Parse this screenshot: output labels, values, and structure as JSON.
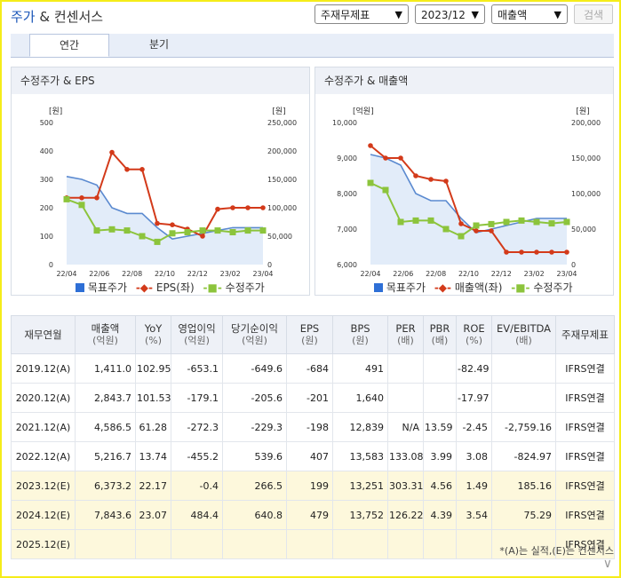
{
  "header": {
    "title_main": "주가",
    "title_rest": " & 컨센서스"
  },
  "controls": {
    "report_type": "주재무제표",
    "period": "2023/12",
    "metric": "매출액",
    "search_label": "검색"
  },
  "tabs": [
    {
      "label": "연간",
      "active": true
    },
    {
      "label": "분기",
      "active": false
    }
  ],
  "chart_data": [
    {
      "type": "line",
      "title": "수정주가 & EPS",
      "y_left_unit": "[원]",
      "y_right_unit": "[원]",
      "y_left_ticks": [
        "500",
        "400",
        "300",
        "200",
        "100",
        "0"
      ],
      "y_right_ticks": [
        "250,000",
        "200,000",
        "150,000",
        "100,000",
        "50,000",
        "0"
      ],
      "ylim_left": [
        0,
        500
      ],
      "ylim_right": [
        0,
        250000
      ],
      "x_ticks": [
        "22/04",
        "22/06",
        "22/08",
        "22/10",
        "22/12",
        "23/02",
        "23/04"
      ],
      "series": [
        {
          "name": "목표주가",
          "axis": "right",
          "color": "#5b8ad0",
          "values": [
            155000,
            150000,
            140000,
            100000,
            90000,
            90000,
            65000,
            45000,
            50000,
            55000,
            60000,
            65000,
            65000,
            65000
          ]
        },
        {
          "name": "EPS(좌)",
          "axis": "left",
          "color": "#d33a1a",
          "values": [
            235,
            235,
            235,
            395,
            335,
            335,
            145,
            140,
            125,
            100,
            195,
            200,
            200,
            200
          ]
        },
        {
          "name": "수정주가",
          "axis": "right",
          "color": "#8cc43c",
          "values": [
            115000,
            105000,
            60000,
            62000,
            60000,
            50000,
            40000,
            55000,
            57000,
            60000,
            60000,
            57000,
            60000,
            60000
          ]
        }
      ]
    },
    {
      "type": "line",
      "title": "수정주가 & 매출액",
      "y_left_unit": "[억원]",
      "y_right_unit": "[원]",
      "y_left_ticks": [
        "10,000",
        "9,000",
        "8,000",
        "7,000",
        "6,000"
      ],
      "y_right_ticks": [
        "200,000",
        "150,000",
        "100,000",
        "50,000",
        "0"
      ],
      "ylim_left": [
        6000,
        10000
      ],
      "ylim_right": [
        0,
        200000
      ],
      "x_ticks": [
        "22/04",
        "22/06",
        "22/08",
        "22/10",
        "22/12",
        "23/02",
        "23/04"
      ],
      "series": [
        {
          "name": "목표주가",
          "axis": "right",
          "color": "#5b8ad0",
          "values": [
            155000,
            150000,
            140000,
            100000,
            90000,
            90000,
            65000,
            45000,
            50000,
            55000,
            60000,
            65000,
            65000,
            65000
          ]
        },
        {
          "name": "매출액(좌)",
          "axis": "left",
          "color": "#d33a1a",
          "values": [
            9350,
            9000,
            9000,
            8500,
            8400,
            8350,
            7150,
            6950,
            6950,
            6350,
            6350,
            6350,
            6350,
            6350
          ]
        },
        {
          "name": "수정주가",
          "axis": "right",
          "color": "#8cc43c",
          "values": [
            115000,
            105000,
            60000,
            62000,
            62000,
            50000,
            40000,
            55000,
            57000,
            60000,
            62000,
            60000,
            58000,
            60000
          ]
        }
      ]
    }
  ],
  "table": {
    "headers": [
      {
        "name": "재무연월",
        "unit": ""
      },
      {
        "name": "매출액",
        "unit": "(억원)"
      },
      {
        "name": "YoY",
        "unit": "(%)"
      },
      {
        "name": "영업이익",
        "unit": "(억원)"
      },
      {
        "name": "당기순이익",
        "unit": "(억원)"
      },
      {
        "name": "EPS",
        "unit": "(원)"
      },
      {
        "name": "BPS",
        "unit": "(원)"
      },
      {
        "name": "PER",
        "unit": "(배)"
      },
      {
        "name": "PBR",
        "unit": "(배)"
      },
      {
        "name": "ROE",
        "unit": "(%)"
      },
      {
        "name": "EV/EBITDA",
        "unit": "(배)"
      },
      {
        "name": "주재무제표",
        "unit": ""
      }
    ],
    "rows": [
      {
        "estimate": false,
        "cells": [
          "2019.12(A)",
          "1,411.0",
          "102.95",
          "-653.1",
          "-649.6",
          "-684",
          "491",
          "",
          "",
          "-82.49",
          "",
          "IFRS연결"
        ]
      },
      {
        "estimate": false,
        "cells": [
          "2020.12(A)",
          "2,843.7",
          "101.53",
          "-179.1",
          "-205.6",
          "-201",
          "1,640",
          "",
          "",
          "-17.97",
          "",
          "IFRS연결"
        ]
      },
      {
        "estimate": false,
        "cells": [
          "2021.12(A)",
          "4,586.5",
          "61.28",
          "-272.3",
          "-229.3",
          "-198",
          "12,839",
          "N/A",
          "13.59",
          "-2.45",
          "-2,759.16",
          "IFRS연결"
        ]
      },
      {
        "estimate": false,
        "cells": [
          "2022.12(A)",
          "5,216.7",
          "13.74",
          "-455.2",
          "539.6",
          "407",
          "13,583",
          "133.08",
          "3.99",
          "3.08",
          "-824.97",
          "IFRS연결"
        ]
      },
      {
        "estimate": true,
        "cells": [
          "2023.12(E)",
          "6,373.2",
          "22.17",
          "-0.4",
          "266.5",
          "199",
          "13,251",
          "303.31",
          "4.56",
          "1.49",
          "185.16",
          "IFRS연결"
        ]
      },
      {
        "estimate": true,
        "cells": [
          "2024.12(E)",
          "7,843.6",
          "23.07",
          "484.4",
          "640.8",
          "479",
          "13,752",
          "126.22",
          "4.39",
          "3.54",
          "75.29",
          "IFRS연결"
        ]
      },
      {
        "estimate": true,
        "cells": [
          "2025.12(E)",
          "",
          "",
          "",
          "",
          "",
          "",
          "",
          "",
          "",
          "",
          "IFRS연결"
        ]
      }
    ]
  },
  "note": "*(A)는 실적,(E)는 컨센서스"
}
